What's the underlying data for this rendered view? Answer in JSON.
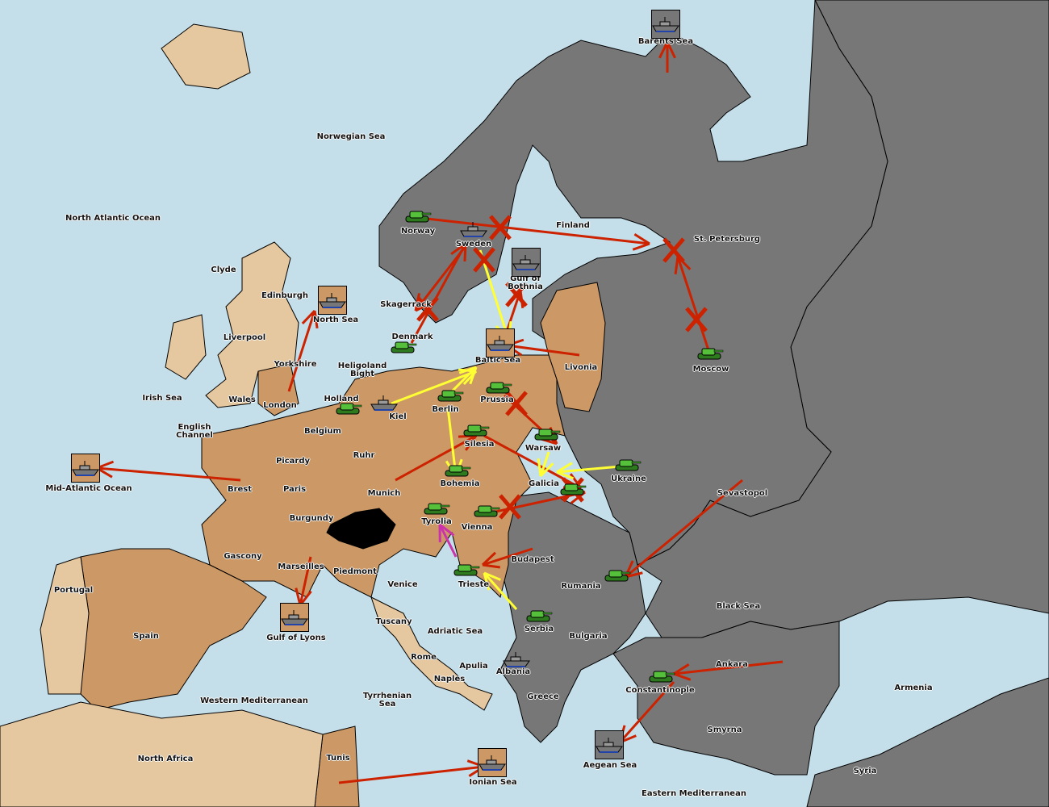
{
  "colors": {
    "sea": "#c5dfea",
    "owned": "#cc9966",
    "neutral": "#e6c8a0",
    "enemy": "#777777",
    "order": "#cc2200",
    "support": "#ffff33",
    "convoy": "#cc33aa"
  },
  "labels": [
    "Barents Sea",
    "Norwegian Sea",
    "North Atlantic Ocean",
    "Norway",
    "Sweden",
    "Finland",
    "St. Petersburg",
    "Clyde",
    "Edinburgh",
    "Gulf of Bothnia",
    "Skagerrack",
    "North Sea",
    "Liverpool",
    "Denmark",
    "Baltic Sea",
    "Livonia",
    "Moscow",
    "Heligoland Bight",
    "Yorkshire",
    "Irish Sea",
    "Wales",
    "London",
    "Holland",
    "Prussia",
    "Kiel",
    "Berlin",
    "English Channel",
    "Belgium",
    "Silesia",
    "Warsaw",
    "Ruhr",
    "Picardy",
    "Ukraine",
    "Brest",
    "Paris",
    "Mid-Atlantic Ocean",
    "Galicia",
    "Sevastopol",
    "Munich",
    "Bohemia",
    "Burgundy",
    "Tyrolia",
    "Vienna",
    "Gascony",
    "Budapest",
    "Marseilles",
    "Piedmont",
    "Portugal",
    "Venice",
    "Trieste",
    "Rumania",
    "Black Sea",
    "Tuscany",
    "Adriatic Sea",
    "Serbia",
    "Spain",
    "Gulf of Lyons",
    "Bulgaria",
    "Rome",
    "Apulia",
    "Albania",
    "Ankara",
    "Naples",
    "Armenia",
    "Constantinople",
    "Greece",
    "Western Mediterranean",
    "Tyrrhenian Sea",
    "Smyrna",
    "North Africa",
    "Tunis",
    "Aegean Sea",
    "Ionian Sea",
    "Syria",
    "Eastern Mediterranean"
  ],
  "units": [
    {
      "type": "army",
      "province": "Norway",
      "owner": "owned"
    },
    {
      "type": "army",
      "province": "Denmark",
      "owner": "owned"
    },
    {
      "type": "army",
      "province": "Holland",
      "owner": "owned"
    },
    {
      "type": "army",
      "province": "Berlin",
      "owner": "owned"
    },
    {
      "type": "army",
      "province": "Silesia",
      "owner": "owned"
    },
    {
      "type": "army",
      "province": "Prussia",
      "owner": "owned"
    },
    {
      "type": "army",
      "province": "Warsaw",
      "owner": "owned"
    },
    {
      "type": "army",
      "province": "Bohemia",
      "owner": "owned"
    },
    {
      "type": "army",
      "province": "Tyrolia",
      "owner": "owned"
    },
    {
      "type": "army",
      "province": "Vienna",
      "owner": "owned"
    },
    {
      "type": "army",
      "province": "Galicia",
      "owner": "owned"
    },
    {
      "type": "army",
      "province": "Ukraine",
      "owner": "owned"
    },
    {
      "type": "army",
      "province": "Moscow",
      "owner": "owned"
    },
    {
      "type": "army",
      "province": "Trieste",
      "owner": "owned"
    },
    {
      "type": "army",
      "province": "Serbia",
      "owner": "owned"
    },
    {
      "type": "army",
      "province": "Rumania",
      "owner": "owned"
    },
    {
      "type": "army",
      "province": "Constantinople",
      "owner": "owned"
    },
    {
      "type": "fleet",
      "province": "Barents Sea",
      "owner": "enemy"
    },
    {
      "type": "fleet",
      "province": "Sweden",
      "owner": "owned"
    },
    {
      "type": "fleet",
      "province": "Gulf of Bothnia",
      "owner": "enemy"
    },
    {
      "type": "fleet",
      "province": "North Sea",
      "owner": "owned"
    },
    {
      "type": "fleet",
      "province": "Baltic Sea",
      "owner": "owned"
    },
    {
      "type": "fleet",
      "province": "Kiel",
      "owner": "owned"
    },
    {
      "type": "fleet",
      "province": "Mid-Atlantic Ocean",
      "owner": "owned"
    },
    {
      "type": "fleet",
      "province": "Gulf of Lyons",
      "owner": "owned"
    },
    {
      "type": "fleet",
      "province": "Ionian Sea",
      "owner": "owned"
    },
    {
      "type": "fleet",
      "province": "Aegean Sea",
      "owner": "enemy"
    },
    {
      "type": "fleet",
      "province": "Albania",
      "owner": "owned"
    }
  ]
}
